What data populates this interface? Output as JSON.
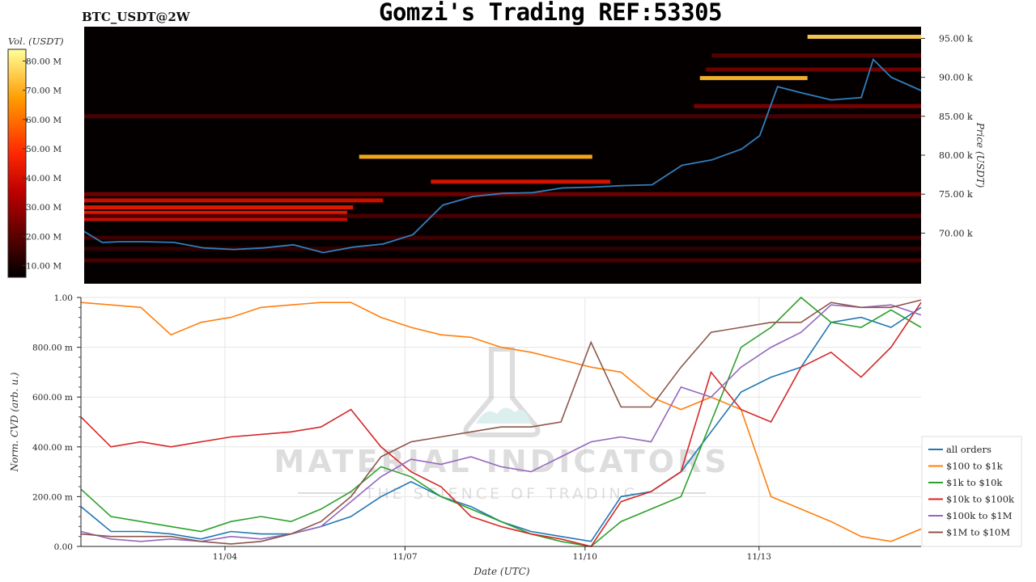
{
  "header": {
    "pair": "BTC_USDT@2W",
    "title": "Gomzi's Trading REF:53305"
  },
  "watermark": {
    "brand": "MATERIAL INDICATORS",
    "tagline": "THE SCIENCE OF TRADING"
  },
  "chart_data": [
    {
      "type": "heatmap",
      "title": "",
      "colorbar": {
        "label": "Vol. (USDT)",
        "ticks": [
          "10.00 M",
          "20.00 M",
          "30.00 M",
          "40.00 M",
          "50.00 M",
          "60.00 M",
          "70.00 M",
          "80.00 M"
        ],
        "range": [
          6,
          84
        ]
      },
      "ylabel": "Price (USDT)",
      "ylim": [
        63500,
        96500
      ],
      "y_ticks": [
        {
          "value": 70000,
          "label": "70.00 k"
        },
        {
          "value": 75000,
          "label": "75.00 k"
        },
        {
          "value": 80000,
          "label": "80.00 k"
        },
        {
          "value": 85000,
          "label": "85.00 k"
        },
        {
          "value": 90000,
          "label": "90.00 k"
        },
        {
          "value": 95000,
          "label": "95.00 k"
        }
      ],
      "xlim": [
        0,
        14
      ],
      "price_line": {
        "color": "#2f7fbf",
        "x": [
          0,
          0.3,
          0.6,
          1,
          1.5,
          2,
          2.5,
          3,
          3.5,
          4,
          4.5,
          5,
          5.5,
          6,
          6.5,
          7,
          7.5,
          8,
          8.5,
          9,
          9.5,
          10,
          10.5,
          11,
          11.3,
          11.6,
          12,
          12.5,
          13,
          13.2,
          13.5,
          14
        ],
        "y": [
          70200,
          68800,
          68900,
          68900,
          68800,
          68100,
          67900,
          68100,
          68500,
          67500,
          68200,
          68600,
          69800,
          73600,
          74700,
          75100,
          75200,
          75800,
          75900,
          76100,
          76200,
          78700,
          79400,
          80800,
          82500,
          88800,
          88000,
          87100,
          87400,
          92300,
          90000,
          88300
        ]
      },
      "walls": [
        {
          "price": 95200,
          "x": [
            12.1,
            14
          ],
          "vol": 76
        },
        {
          "price": 89900,
          "x": [
            10.3,
            12.1
          ],
          "vol": 72
        },
        {
          "price": 79800,
          "x": [
            4.6,
            8.5
          ],
          "vol": 70
        },
        {
          "price": 76600,
          "x": [
            5.8,
            8.8
          ],
          "vol": 42
        },
        {
          "price": 74200,
          "x": [
            0,
            5
          ],
          "vol": 40
        },
        {
          "price": 73300,
          "x": [
            0,
            4.5
          ],
          "vol": 44
        },
        {
          "price": 72600,
          "x": [
            0,
            4.4
          ],
          "vol": 44
        },
        {
          "price": 71800,
          "x": [
            0,
            4.4
          ],
          "vol": 40
        },
        {
          "price": 75000,
          "x": [
            0,
            14
          ],
          "vol": 24
        },
        {
          "price": 72200,
          "x": [
            0,
            14
          ],
          "vol": 18
        },
        {
          "price": 86300,
          "x": [
            10.2,
            14
          ],
          "vol": 26
        },
        {
          "price": 85000,
          "x": [
            0,
            14
          ],
          "vol": 18
        },
        {
          "price": 91000,
          "x": [
            10.4,
            14
          ],
          "vol": 24
        },
        {
          "price": 92800,
          "x": [
            10.5,
            14
          ],
          "vol": 20
        },
        {
          "price": 69400,
          "x": [
            0,
            14
          ],
          "vol": 16
        },
        {
          "price": 66500,
          "x": [
            0,
            14
          ],
          "vol": 18
        },
        {
          "price": 68000,
          "x": [
            0,
            14
          ],
          "vol": 14
        }
      ]
    },
    {
      "type": "line",
      "title": "",
      "xlabel": "Date (UTC)",
      "ylabel": "Norm. CVD (arb. u.)",
      "ylim": [
        0,
        1
      ],
      "xlim": [
        0,
        14
      ],
      "x_ticks": [
        {
          "value": 2.4,
          "label": "11/04"
        },
        {
          "value": 5.4,
          "label": "11/07"
        },
        {
          "value": 8.4,
          "label": "11/10"
        },
        {
          "value": 11.3,
          "label": "11/13"
        }
      ],
      "y_ticks": [
        {
          "value": 0,
          "label": "0.00"
        },
        {
          "value": 0.2,
          "label": "200.00 m"
        },
        {
          "value": 0.4,
          "label": "400.00 m"
        },
        {
          "value": 0.6,
          "label": "600.00 m"
        },
        {
          "value": 0.8,
          "label": "800.00 m"
        },
        {
          "value": 1,
          "label": "1.00"
        }
      ],
      "x": [
        0,
        0.5,
        1,
        1.5,
        2,
        2.5,
        3,
        3.5,
        4,
        4.5,
        5,
        5.5,
        6,
        6.5,
        7,
        7.5,
        8,
        8.5,
        9,
        9.5,
        10,
        10.5,
        11,
        11.5,
        12,
        12.5,
        13,
        13.5,
        14
      ],
      "series": [
        {
          "name": "all orders",
          "color": "#1f77b4",
          "values": [
            0.16,
            0.06,
            0.06,
            0.05,
            0.03,
            0.06,
            0.05,
            0.05,
            0.08,
            0.12,
            0.2,
            0.26,
            0.2,
            0.16,
            0.1,
            0.06,
            0.04,
            0.02,
            0.2,
            0.22,
            0.3,
            0.46,
            0.62,
            0.68,
            0.72,
            0.9,
            0.92,
            0.88,
            0.96
          ]
        },
        {
          "name": "$100 to $1k",
          "color": "#ff7f0e",
          "values": [
            0.98,
            0.97,
            0.96,
            0.85,
            0.9,
            0.92,
            0.96,
            0.97,
            0.98,
            0.98,
            0.92,
            0.88,
            0.85,
            0.84,
            0.8,
            0.78,
            0.75,
            0.72,
            0.7,
            0.6,
            0.55,
            0.6,
            0.55,
            0.2,
            0.15,
            0.1,
            0.04,
            0.02,
            0.07
          ]
        },
        {
          "name": "$1k to $10k",
          "color": "#2ca02c",
          "values": [
            0.23,
            0.12,
            0.1,
            0.08,
            0.06,
            0.1,
            0.12,
            0.1,
            0.15,
            0.22,
            0.32,
            0.28,
            0.2,
            0.15,
            0.1,
            0.05,
            0.02,
            0.0,
            0.1,
            0.15,
            0.2,
            0.5,
            0.8,
            0.88,
            1.0,
            0.9,
            0.88,
            0.95,
            0.88
          ]
        },
        {
          "name": "$10k to $100k",
          "color": "#d62728",
          "values": [
            0.52,
            0.4,
            0.42,
            0.4,
            0.42,
            0.44,
            0.45,
            0.46,
            0.48,
            0.55,
            0.4,
            0.3,
            0.24,
            0.12,
            0.08,
            0.05,
            0.03,
            0.0,
            0.18,
            0.22,
            0.3,
            0.7,
            0.55,
            0.5,
            0.72,
            0.78,
            0.68,
            0.8,
            0.98
          ]
        },
        {
          "name": "$100k to $1M",
          "color": "#9467bd",
          "values": [
            0.06,
            0.03,
            0.02,
            0.03,
            0.02,
            0.04,
            0.03,
            0.05,
            0.08,
            0.18,
            0.28,
            0.35,
            0.33,
            0.36,
            0.32,
            0.3,
            0.36,
            0.42,
            0.44,
            0.42,
            0.64,
            0.6,
            0.72,
            0.8,
            0.86,
            0.97,
            0.96,
            0.97,
            0.93
          ]
        },
        {
          "name": "$1M to $10M",
          "color": "#8c564b",
          "values": [
            0.05,
            0.04,
            0.04,
            0.04,
            0.02,
            0.01,
            0.02,
            0.05,
            0.1,
            0.2,
            0.36,
            0.42,
            0.44,
            0.46,
            0.48,
            0.48,
            0.5,
            0.82,
            0.56,
            0.56,
            0.72,
            0.86,
            0.88,
            0.9,
            0.9,
            0.98,
            0.96,
            0.96,
            0.99
          ]
        }
      ],
      "legend_position": "lower-right"
    }
  ]
}
